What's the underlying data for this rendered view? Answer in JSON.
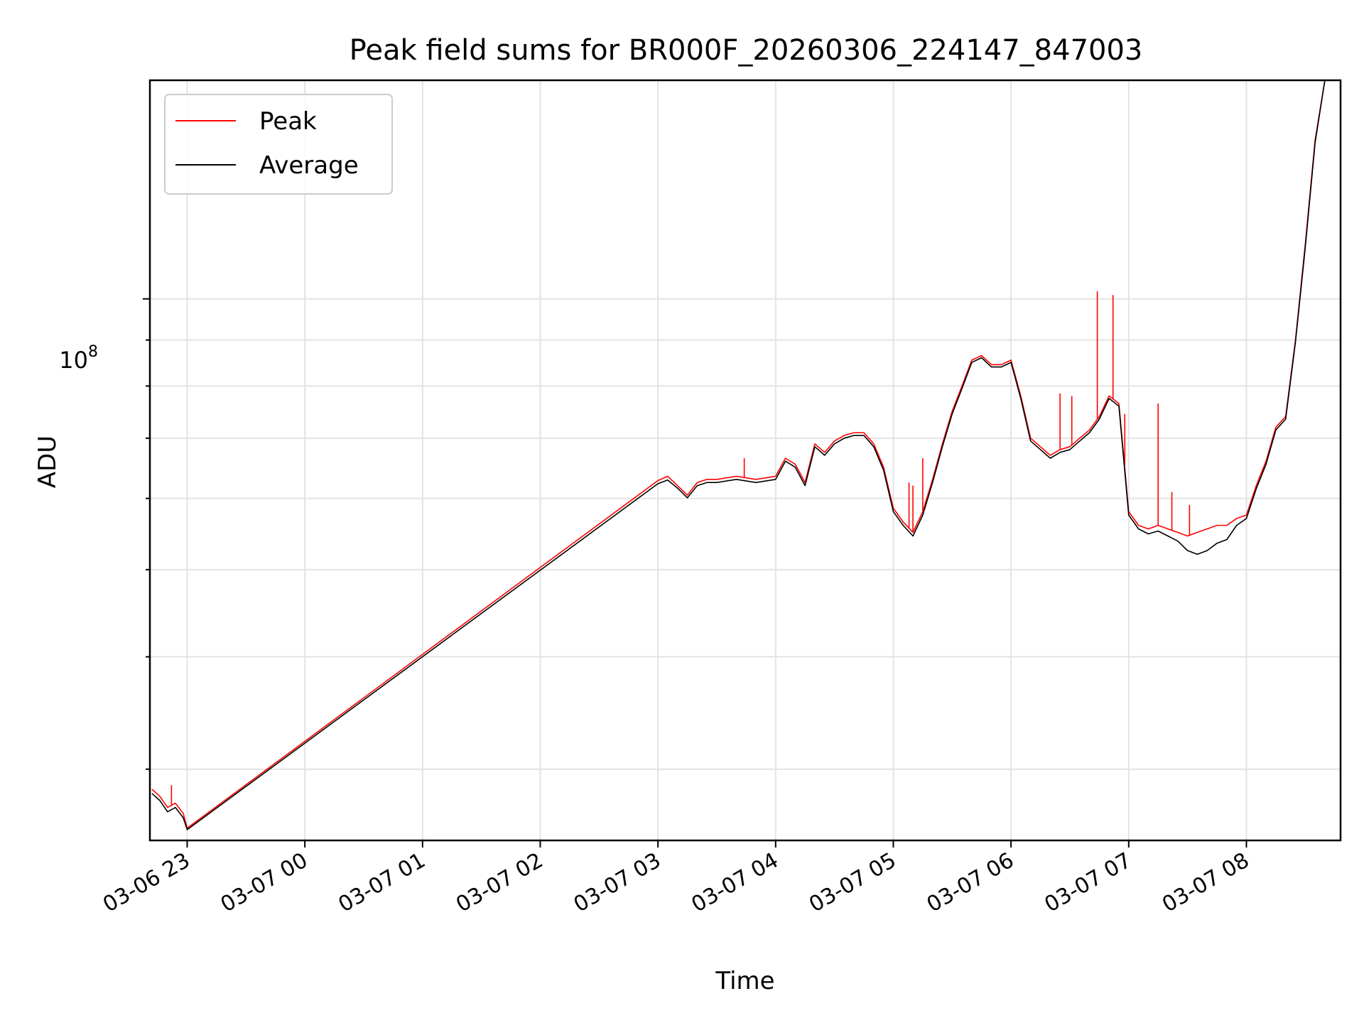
{
  "chart_data": {
    "type": "line",
    "title": "Peak field sums for BR000F_20260306_224147_847003",
    "xlabel": "Time",
    "ylabel": "ADU",
    "y_scale": "log",
    "y_major_tick_label": "10",
    "y_major_tick_exponent": "8",
    "y_major_tick_value": 100000000,
    "ylim": [
      25000000,
      175000000
    ],
    "xlim": [
      "2026-03-06 22:41",
      "2026-03-07 08:48"
    ],
    "x_tick_labels": [
      "03-06 23",
      "03-07 00",
      "03-07 01",
      "03-07 02",
      "03-07 03",
      "03-07 04",
      "03-07 05",
      "03-07 06",
      "03-07 07",
      "03-07 08"
    ],
    "x_tick_values": [
      "2026-03-06 23:00",
      "2026-03-07 00:00",
      "2026-03-07 01:00",
      "2026-03-07 02:00",
      "2026-03-07 03:00",
      "2026-03-07 04:00",
      "2026-03-07 05:00",
      "2026-03-07 06:00",
      "2026-03-07 07:00",
      "2026-03-07 08:00"
    ],
    "grid": true,
    "legend_position": "top-left",
    "series": [
      {
        "name": "Peak",
        "color": "#ff0000",
        "x": [
          "2026-03-06 22:42",
          "2026-03-06 22:46",
          "2026-03-06 22:50",
          "2026-03-06 22:54",
          "2026-03-06 22:58",
          "2026-03-06 23:00",
          "2026-03-07 03:00",
          "2026-03-07 03:05",
          "2026-03-07 03:10",
          "2026-03-07 03:15",
          "2026-03-07 03:20",
          "2026-03-07 03:25",
          "2026-03-07 03:30",
          "2026-03-07 03:40",
          "2026-03-07 03:50",
          "2026-03-07 04:00",
          "2026-03-07 04:05",
          "2026-03-07 04:10",
          "2026-03-07 04:15",
          "2026-03-07 04:20",
          "2026-03-07 04:25",
          "2026-03-07 04:30",
          "2026-03-07 04:35",
          "2026-03-07 04:40",
          "2026-03-07 04:45",
          "2026-03-07 04:50",
          "2026-03-07 04:55",
          "2026-03-07 05:00",
          "2026-03-07 05:05",
          "2026-03-07 05:10",
          "2026-03-07 05:15",
          "2026-03-07 05:20",
          "2026-03-07 05:25",
          "2026-03-07 05:30",
          "2026-03-07 05:35",
          "2026-03-07 05:40",
          "2026-03-07 05:45",
          "2026-03-07 05:50",
          "2026-03-07 05:55",
          "2026-03-07 06:00",
          "2026-03-07 06:05",
          "2026-03-07 06:10",
          "2026-03-07 06:15",
          "2026-03-07 06:20",
          "2026-03-07 06:25",
          "2026-03-07 06:30",
          "2026-03-07 06:35",
          "2026-03-07 06:40",
          "2026-03-07 06:45",
          "2026-03-07 06:50",
          "2026-03-07 06:55",
          "2026-03-07 07:00",
          "2026-03-07 07:05",
          "2026-03-07 07:10",
          "2026-03-07 07:15",
          "2026-03-07 07:20",
          "2026-03-07 07:25",
          "2026-03-07 07:30",
          "2026-03-07 07:35",
          "2026-03-07 07:40",
          "2026-03-07 07:45",
          "2026-03-07 07:50",
          "2026-03-07 07:55",
          "2026-03-07 08:00",
          "2026-03-07 08:05",
          "2026-03-07 08:10",
          "2026-03-07 08:15",
          "2026-03-07 08:20",
          "2026-03-07 08:25",
          "2026-03-07 08:30",
          "2026-03-07 08:35",
          "2026-03-07 08:40",
          "2026-03-07 08:45"
        ],
        "y": [
          28500000,
          28000000,
          27200000,
          27500000,
          26800000,
          25800000,
          62800000,
          63500000,
          62000000,
          60500000,
          62500000,
          63000000,
          63000000,
          63500000,
          63000000,
          63500000,
          66500000,
          65500000,
          62500000,
          69000000,
          67500000,
          69500000,
          70500000,
          71000000,
          71000000,
          69000000,
          65000000,
          58500000,
          56500000,
          55000000,
          58000000,
          63000000,
          69000000,
          75000000,
          80000000,
          85500000,
          86500000,
          84500000,
          84500000,
          85500000,
          78000000,
          70000000,
          68500000,
          67000000,
          68000000,
          68500000,
          70000000,
          71500000,
          74000000,
          78000000,
          76500000,
          58000000,
          56000000,
          55500000,
          56000000,
          55500000,
          55000000,
          54500000,
          55000000,
          55500000,
          56000000,
          56000000,
          57000000,
          57500000,
          62000000,
          66000000,
          72000000,
          74000000,
          90000000,
          115000000,
          150000000,
          175000000,
          175000000
        ],
        "spikes": [
          {
            "x": "2026-03-06 22:52",
            "y": 28800000
          },
          {
            "x": "2026-03-07 03:44",
            "y": 66500000
          },
          {
            "x": "2026-03-07 05:08",
            "y": 62500000
          },
          {
            "x": "2026-03-07 05:10",
            "y": 62000000
          },
          {
            "x": "2026-03-07 05:15",
            "y": 66500000
          },
          {
            "x": "2026-03-07 06:25",
            "y": 78500000
          },
          {
            "x": "2026-03-07 06:31",
            "y": 78000000
          },
          {
            "x": "2026-03-07 06:44",
            "y": 102000000
          },
          {
            "x": "2026-03-07 06:52",
            "y": 101000000
          },
          {
            "x": "2026-03-07 06:58",
            "y": 74500000
          },
          {
            "x": "2026-03-07 07:15",
            "y": 76500000
          },
          {
            "x": "2026-03-07 07:22",
            "y": 61000000
          },
          {
            "x": "2026-03-07 07:31",
            "y": 59000000
          }
        ]
      },
      {
        "name": "Average",
        "color": "#000000",
        "x": [
          "2026-03-06 22:42",
          "2026-03-06 22:46",
          "2026-03-06 22:50",
          "2026-03-06 22:54",
          "2026-03-06 22:58",
          "2026-03-06 23:00",
          "2026-03-07 03:00",
          "2026-03-07 03:05",
          "2026-03-07 03:10",
          "2026-03-07 03:15",
          "2026-03-07 03:20",
          "2026-03-07 03:25",
          "2026-03-07 03:30",
          "2026-03-07 03:40",
          "2026-03-07 03:50",
          "2026-03-07 04:00",
          "2026-03-07 04:05",
          "2026-03-07 04:10",
          "2026-03-07 04:15",
          "2026-03-07 04:20",
          "2026-03-07 04:25",
          "2026-03-07 04:30",
          "2026-03-07 04:35",
          "2026-03-07 04:40",
          "2026-03-07 04:45",
          "2026-03-07 04:50",
          "2026-03-07 04:55",
          "2026-03-07 05:00",
          "2026-03-07 05:05",
          "2026-03-07 05:10",
          "2026-03-07 05:15",
          "2026-03-07 05:20",
          "2026-03-07 05:25",
          "2026-03-07 05:30",
          "2026-03-07 05:35",
          "2026-03-07 05:40",
          "2026-03-07 05:45",
          "2026-03-07 05:50",
          "2026-03-07 05:55",
          "2026-03-07 06:00",
          "2026-03-07 06:05",
          "2026-03-07 06:10",
          "2026-03-07 06:15",
          "2026-03-07 06:20",
          "2026-03-07 06:25",
          "2026-03-07 06:30",
          "2026-03-07 06:35",
          "2026-03-07 06:40",
          "2026-03-07 06:45",
          "2026-03-07 06:50",
          "2026-03-07 06:55",
          "2026-03-07 07:00",
          "2026-03-07 07:05",
          "2026-03-07 07:10",
          "2026-03-07 07:15",
          "2026-03-07 07:20",
          "2026-03-07 07:25",
          "2026-03-07 07:30",
          "2026-03-07 07:35",
          "2026-03-07 07:40",
          "2026-03-07 07:45",
          "2026-03-07 07:50",
          "2026-03-07 07:55",
          "2026-03-07 08:00",
          "2026-03-07 08:05",
          "2026-03-07 08:10",
          "2026-03-07 08:15",
          "2026-03-07 08:20",
          "2026-03-07 08:25",
          "2026-03-07 08:30",
          "2026-03-07 08:35",
          "2026-03-07 08:40",
          "2026-03-07 08:45"
        ],
        "y": [
          28200000,
          27700000,
          26900000,
          27200000,
          26500000,
          25700000,
          62300000,
          62900000,
          61600000,
          60100000,
          62000000,
          62500000,
          62500000,
          63000000,
          62500000,
          63000000,
          66000000,
          65000000,
          62000000,
          68500000,
          67000000,
          69000000,
          70000000,
          70500000,
          70500000,
          68500000,
          64500000,
          58000000,
          56000000,
          54500000,
          57500000,
          62500000,
          68500000,
          74500000,
          79500000,
          85000000,
          86000000,
          84000000,
          84000000,
          85000000,
          77500000,
          69500000,
          68000000,
          66500000,
          67500000,
          68000000,
          69500000,
          71000000,
          73500000,
          77500000,
          76000000,
          57500000,
          55500000,
          54800000,
          55200000,
          54500000,
          53800000,
          52500000,
          52000000,
          52500000,
          53500000,
          54000000,
          56000000,
          57000000,
          61500000,
          65500000,
          71500000,
          73500000,
          89500000,
          114000000,
          149000000,
          175000000,
          175000000
        ]
      }
    ]
  }
}
